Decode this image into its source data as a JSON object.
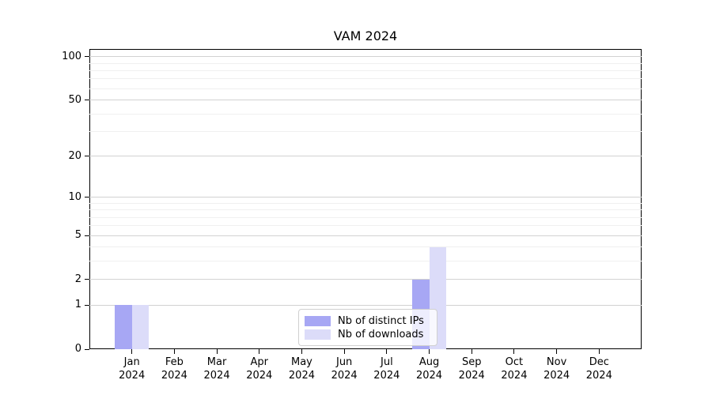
{
  "title": "VAM 2024",
  "colors": {
    "distinct_ips": "#a7a7f4",
    "downloads": "#dcdcf9",
    "grid_major": "#d2d2d2",
    "grid_minor": "#f0f0f0",
    "axis": "#000000",
    "legend_border": "#d0d0d0"
  },
  "chart_data": {
    "type": "bar",
    "title": "VAM 2024",
    "categories": [
      "Jan 2024",
      "Feb 2024",
      "Mar 2024",
      "Apr 2024",
      "May 2024",
      "Jun 2024",
      "Jul 2024",
      "Aug 2024",
      "Sep 2024",
      "Oct 2024",
      "Nov 2024",
      "Dec 2024"
    ],
    "series": [
      {
        "name": "Nb of distinct IPs",
        "color": "#a7a7f4",
        "values": [
          1,
          0,
          0,
          0,
          0,
          0,
          0,
          2,
          0,
          0,
          0,
          0
        ]
      },
      {
        "name": "Nb of downloads",
        "color": "#dcdcf9",
        "values": [
          1,
          0,
          0,
          0,
          0,
          0,
          0,
          4,
          0,
          0,
          0,
          0
        ]
      }
    ],
    "yscale": "log1p",
    "ylim": [
      0,
      113
    ],
    "yticks": [
      0,
      1,
      2,
      5,
      10,
      20,
      50,
      100
    ],
    "minor_gridlines": [
      3,
      4,
      6,
      7,
      8,
      9,
      30,
      40,
      60,
      70,
      80,
      90
    ],
    "grid": true,
    "legend_position": "inside lower-center"
  },
  "legend": {
    "items": [
      {
        "label": "Nb of distinct IPs"
      },
      {
        "label": "Nb of downloads"
      }
    ]
  }
}
